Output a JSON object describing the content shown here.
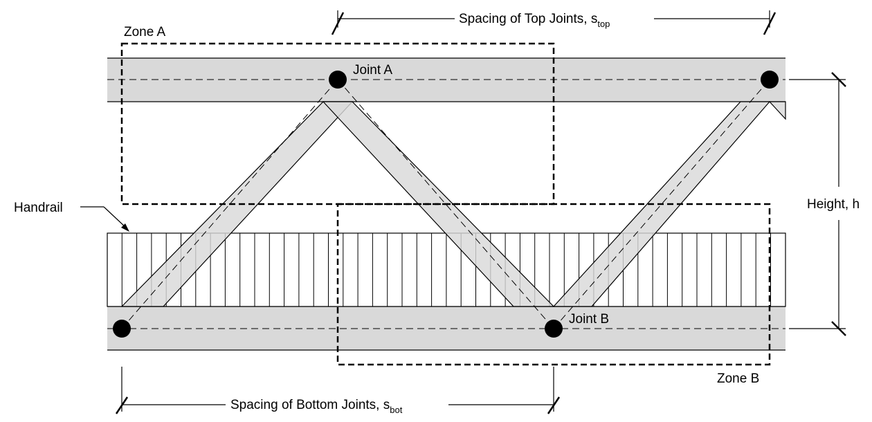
{
  "labels": {
    "zone_a": "Zone A",
    "zone_b": "Zone B",
    "joint_a": "Joint A",
    "joint_b": "Joint B",
    "handrail": "Handrail",
    "height": "Height, h",
    "top_spacing_main": "Spacing of Top Joints, s",
    "top_spacing_sub": "top",
    "bottom_spacing_main": "Spacing of Bottom Joints, s",
    "bottom_spacing_sub": "bot"
  },
  "colors": {
    "member_fill": "#d9d9d9",
    "line": "#000000",
    "background": "#ffffff"
  }
}
